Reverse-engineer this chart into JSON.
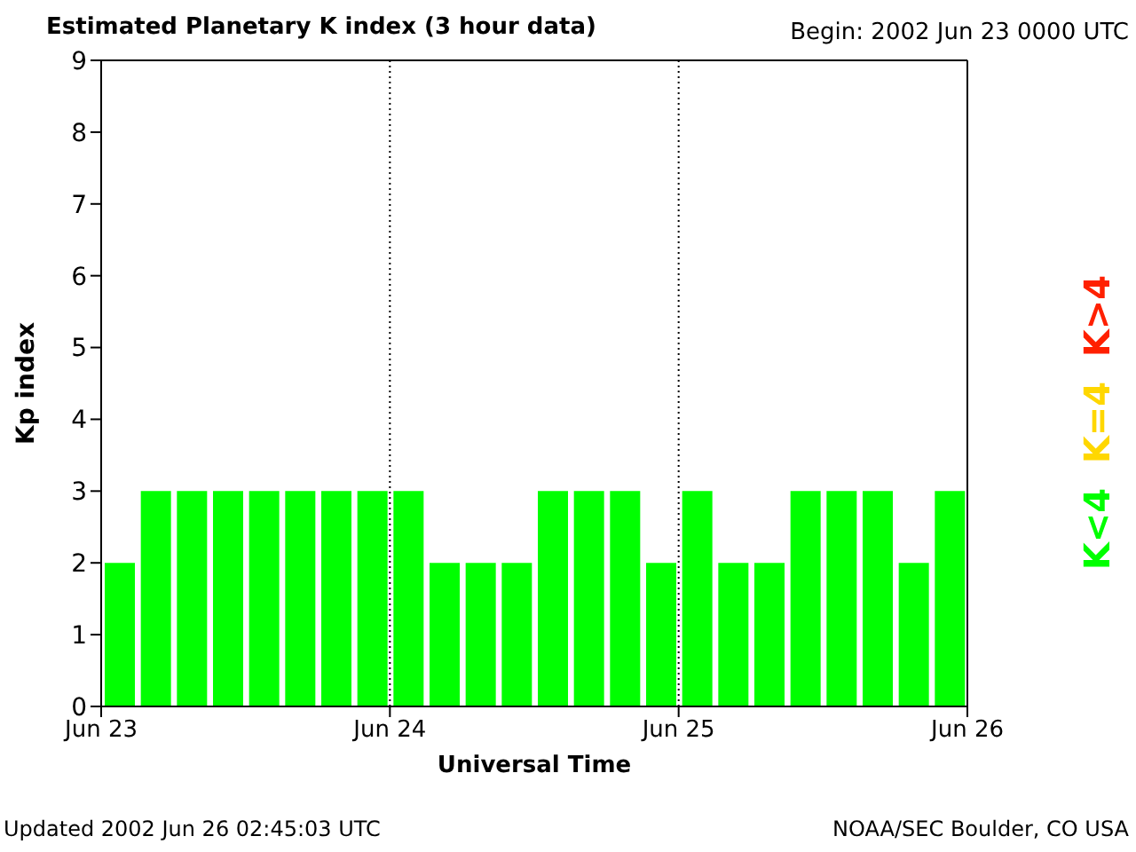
{
  "chart_data": {
    "type": "bar",
    "title": "Estimated Planetary K index (3 hour data)",
    "xlabel": "Universal Time",
    "ylabel": "Kp index",
    "annotations": [
      "Begin:  2002 Jun 23 0000 UTC",
      "Updated 2002 Jun 26 02:45:03 UTC",
      "NOAA/SEC Boulder, CO USA"
    ],
    "x": [
      "2002-06-23T01:30",
      "2002-06-23T04:30",
      "2002-06-23T07:30",
      "2002-06-23T10:30",
      "2002-06-23T13:30",
      "2002-06-23T16:30",
      "2002-06-23T19:30",
      "2002-06-23T22:30",
      "2002-06-24T01:30",
      "2002-06-24T04:30",
      "2002-06-24T07:30",
      "2002-06-24T10:30",
      "2002-06-24T13:30",
      "2002-06-24T16:30",
      "2002-06-24T19:30",
      "2002-06-24T22:30",
      "2002-06-25T01:30",
      "2002-06-25T04:30",
      "2002-06-25T07:30",
      "2002-06-25T10:30",
      "2002-06-25T13:30",
      "2002-06-25T16:30",
      "2002-06-25T19:30",
      "2002-06-25T22:30"
    ],
    "series": [
      {
        "name": "K<4",
        "color": "#00ff00",
        "values": [
          2,
          3,
          3,
          3,
          3,
          3,
          3,
          3,
          3,
          2,
          2,
          2,
          3,
          3,
          3,
          2,
          3,
          2,
          2,
          3,
          3,
          3,
          2,
          3
        ]
      },
      {
        "name": "K=4",
        "color": "#ffd700",
        "values": [
          null,
          null,
          null,
          null,
          null,
          null,
          null,
          null,
          null,
          null,
          null,
          null,
          null,
          null,
          null,
          null,
          null,
          null,
          null,
          null,
          null,
          null,
          null,
          null
        ]
      },
      {
        "name": "K>4",
        "color": "#ff2000",
        "values": [
          null,
          null,
          null,
          null,
          null,
          null,
          null,
          null,
          null,
          null,
          null,
          null,
          null,
          null,
          null,
          null,
          null,
          null,
          null,
          null,
          null,
          null,
          null,
          null
        ]
      }
    ],
    "stacked": true,
    "xlim": [
      "2002-06-23T00:00",
      "2002-06-26T00:00"
    ],
    "xticks": [
      {
        "value": "2002-06-23T00:00",
        "label": "Jun 23"
      },
      {
        "value": "2002-06-24T00:00",
        "label": "Jun 24"
      },
      {
        "value": "2002-06-25T00:00",
        "label": "Jun 25"
      },
      {
        "value": "2002-06-26T00:00",
        "label": "Jun 26"
      }
    ],
    "ylim": [
      0,
      9
    ],
    "yticks": [
      0,
      1,
      2,
      3,
      4,
      5,
      6,
      7,
      8,
      9
    ],
    "ref_lines": [
      {
        "axis": "x",
        "value": "2002-06-24T00:00",
        "label": null,
        "color": "#000000",
        "line_style": "dotted"
      },
      {
        "axis": "x",
        "value": "2002-06-25T00:00",
        "label": null,
        "color": "#000000",
        "line_style": "dotted"
      }
    ],
    "grid": false,
    "legend": "right"
  }
}
